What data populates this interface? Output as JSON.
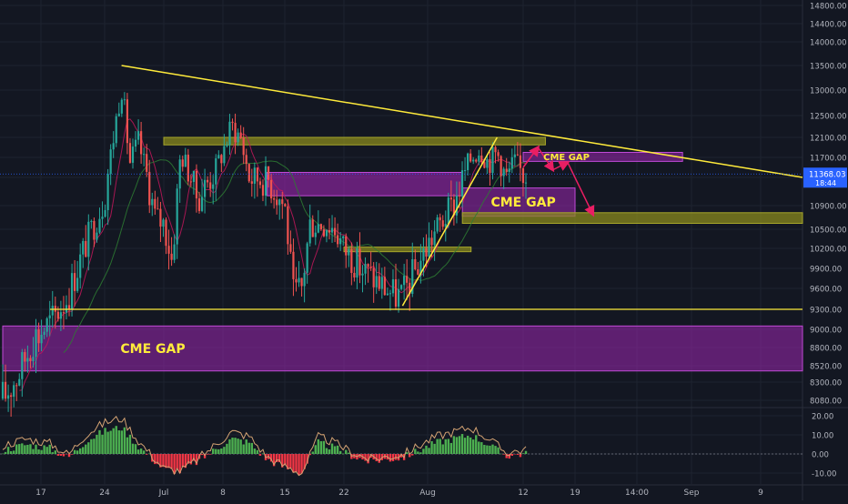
{
  "chart_data": [
    {
      "type": "candlestick",
      "title": "",
      "ylabel": "",
      "xlabel": "",
      "ylim": [
        8000,
        14900
      ],
      "grid": true,
      "x_tick_labels": [
        "17",
        "24",
        "Jul",
        "8",
        "15",
        "22",
        "Aug",
        "12",
        "19",
        "14:00",
        "Sep",
        "9"
      ],
      "y_tick_labels": [
        "14800.00",
        "14400.00",
        "14000.00",
        "13500.00",
        "13000.00",
        "12500.00",
        "12100.00",
        "11700.00",
        "11300.00",
        "10900.00",
        "10500.00",
        "10200.00",
        "9900.00",
        "9600.00",
        "9300.00",
        "9000.00",
        "8800.00",
        "8520.00",
        "8300.00",
        "8080.00"
      ],
      "last_price": "11368.03",
      "countdown": "18:44",
      "price_series": [
        {
          "x": "Jun 12",
          "close": 8100
        },
        {
          "x": "Jun 14",
          "close": 8400
        },
        {
          "x": "Jun 16",
          "close": 8900
        },
        {
          "x": "Jun 18",
          "close": 9100
        },
        {
          "x": "Jun 20",
          "close": 9500
        },
        {
          "x": "Jun 22",
          "close": 10300
        },
        {
          "x": "Jun 24",
          "close": 11000
        },
        {
          "x": "Jun 26",
          "close": 13100
        },
        {
          "x": "Jun 27",
          "close": 11600
        },
        {
          "x": "Jun 28",
          "close": 12000
        },
        {
          "x": "Jun 30",
          "close": 10700
        },
        {
          "x": "Jul 1",
          "close": 10600
        },
        {
          "x": "Jul 2",
          "close": 10000
        },
        {
          "x": "Jul 3",
          "close": 11800
        },
        {
          "x": "Jul 5",
          "close": 11000
        },
        {
          "x": "Jul 7",
          "close": 11400
        },
        {
          "x": "Jul 9",
          "close": 12300
        },
        {
          "x": "Jul 10",
          "close": 12100
        },
        {
          "x": "Jul 11",
          "close": 11300
        },
        {
          "x": "Jul 13",
          "close": 11300
        },
        {
          "x": "Jul 15",
          "close": 10900
        },
        {
          "x": "Jul 16",
          "close": 9500
        },
        {
          "x": "Jul 17",
          "close": 9600
        },
        {
          "x": "Jul 18",
          "close": 10600
        },
        {
          "x": "Jul 20",
          "close": 10600
        },
        {
          "x": "Jul 21",
          "close": 10500
        },
        {
          "x": "Jul 22",
          "close": 10200
        },
        {
          "x": "Jul 24",
          "close": 9900
        },
        {
          "x": "Jul 26",
          "close": 9700
        },
        {
          "x": "Jul 28",
          "close": 9500
        },
        {
          "x": "Jul 29",
          "close": 9500
        },
        {
          "x": "Jul 31",
          "close": 10000
        },
        {
          "x": "Aug 2",
          "close": 10500
        },
        {
          "x": "Aug 4",
          "close": 10900
        },
        {
          "x": "Aug 6",
          "close": 11700
        },
        {
          "x": "Aug 7",
          "close": 11900
        },
        {
          "x": "Aug 8",
          "close": 11600
        },
        {
          "x": "Aug 9",
          "close": 11800
        },
        {
          "x": "Aug 10",
          "close": 11300
        },
        {
          "x": "Aug 11",
          "close": 11600
        },
        {
          "x": "Aug 12",
          "close": 11368
        }
      ],
      "annotations": {
        "gap_labels": [
          "CME GAP",
          "CME GAP",
          "CME GAP"
        ],
        "cme_gaps": [
          {
            "label_index": 0,
            "from": "Jun 12",
            "to": "Oct 4",
            "low": 8450,
            "high": 9050
          },
          {
            "label_index": 1,
            "from": "Aug 5",
            "to": "Aug 19",
            "low": 10720,
            "high": 11150
          },
          {
            "label_index": 2,
            "from": "Aug 12",
            "to": "Aug 31",
            "low": 11620,
            "high": 11800
          }
        ],
        "resistance_zones": [
          {
            "from": "Jul 1",
            "to": "Aug 15",
            "low": 11950,
            "high": 12100
          },
          {
            "from": "Aug 5",
            "to": "Oct 4",
            "low": 10600,
            "high": 10780
          },
          {
            "from": "Jul 22",
            "to": "Aug 6",
            "low": 10150,
            "high": 10220
          }
        ],
        "highlight_zones": [
          {
            "from": "Jul 13",
            "to": "Aug 5",
            "low": 11040,
            "high": 11400
          }
        ],
        "trendlines": [
          {
            "from": {
              "x": "Jun 26",
              "y": 13500
            },
            "to": {
              "x": "Oct 4",
              "y": 11300
            }
          },
          {
            "from": {
              "x": "Jul 29",
              "y": 9350
            },
            "to": {
              "x": "Aug 9",
              "y": 12100
            }
          }
        ],
        "horizontal_lines": [
          {
            "from": "Jun 18",
            "to": "Oct 4",
            "y": 9300
          }
        ],
        "projection_path": [
          {
            "x": "Aug 12",
            "y": 11500
          },
          {
            "x": "Aug 14",
            "y": 11900
          },
          {
            "x": "Aug 16",
            "y": 11450
          },
          {
            "x": "Aug 18",
            "y": 11600
          },
          {
            "x": "Aug 21",
            "y": 10750
          }
        ]
      },
      "colors": {
        "background": "#131722",
        "grid": "#1e2330",
        "axis_text": "#b2b5be",
        "up": "#26a69a",
        "down": "#ef5350",
        "trendline": "#ffeb3b",
        "gap_fill": "#9c27b0",
        "gap_label": "#ffeb3b",
        "zone_fill": "#8a8a1e",
        "projection": "#e91e63",
        "price_tag": "#2962ff"
      }
    },
    {
      "type": "histogram",
      "ylim": [
        -14,
        26
      ],
      "y_tick_labels": [
        "20.00",
        "10.00",
        "0.00",
        "-10.00"
      ],
      "histogram": [
        {
          "x": "Jun 12",
          "value": 2
        },
        {
          "x": "Jun 15",
          "value": 5
        },
        {
          "x": "Jun 18",
          "value": 3
        },
        {
          "x": "Jun 20",
          "value": -2
        },
        {
          "x": "Jun 22",
          "value": 7
        },
        {
          "x": "Jun 24",
          "value": 12
        },
        {
          "x": "Jun 26",
          "value": 14
        },
        {
          "x": "Jun 28",
          "value": 4
        },
        {
          "x": "Jul 1",
          "value": -8
        },
        {
          "x": "Jul 3",
          "value": -9
        },
        {
          "x": "Jul 5",
          "value": -4
        },
        {
          "x": "Jul 7",
          "value": 2
        },
        {
          "x": "Jul 9",
          "value": 8
        },
        {
          "x": "Jul 11",
          "value": 6
        },
        {
          "x": "Jul 13",
          "value": -3
        },
        {
          "x": "Jul 15",
          "value": -7
        },
        {
          "x": "Jul 17",
          "value": -10
        },
        {
          "x": "Jul 19",
          "value": 6
        },
        {
          "x": "Jul 21",
          "value": 3
        },
        {
          "x": "Jul 23",
          "value": -1
        },
        {
          "x": "Jul 25",
          "value": -4
        },
        {
          "x": "Jul 27",
          "value": -3
        },
        {
          "x": "Jul 29",
          "value": -2
        },
        {
          "x": "Jul 31",
          "value": 2
        },
        {
          "x": "Aug 2",
          "value": 6
        },
        {
          "x": "Aug 4",
          "value": 8
        },
        {
          "x": "Aug 6",
          "value": 10
        },
        {
          "x": "Aug 8",
          "value": 5
        },
        {
          "x": "Aug 10",
          "value": -1
        },
        {
          "x": "Aug 12",
          "value": 0
        }
      ]
    }
  ]
}
